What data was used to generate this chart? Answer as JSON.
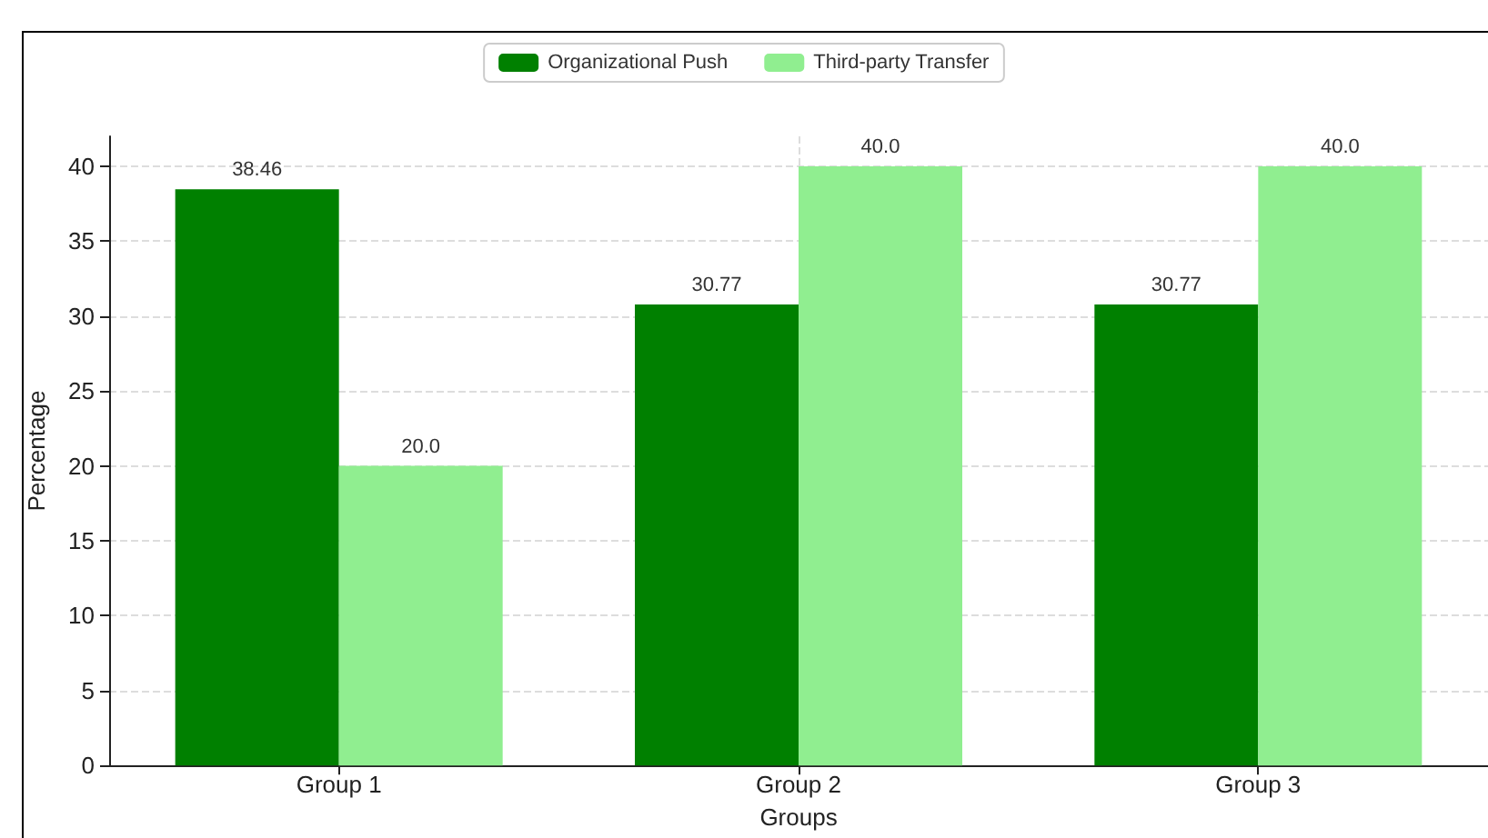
{
  "chart_data": {
    "type": "bar",
    "xlabel": "Groups",
    "ylabel": "Percentage",
    "categories": [
      "Group 1",
      "Group 2",
      "Group 3"
    ],
    "series": [
      {
        "name": "Organizational Push",
        "color": "#008000",
        "values": [
          38.46,
          30.77,
          30.77
        ],
        "value_labels": [
          "38.46",
          "30.77",
          "30.77"
        ]
      },
      {
        "name": "Third-party Transfer",
        "color": "#90ee90",
        "values": [
          20,
          40,
          40
        ],
        "value_labels": [
          "20.0",
          "40.0",
          "40.0"
        ]
      }
    ],
    "ylim": [
      0,
      42
    ],
    "yticks": [
      0,
      5,
      10,
      15,
      20,
      25,
      30,
      35,
      40
    ],
    "grid": true,
    "legend": "top"
  }
}
